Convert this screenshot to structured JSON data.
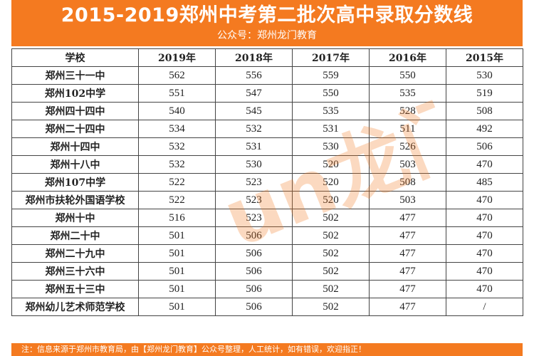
{
  "header": {
    "title": "2015-2019郑州中考第二批次高中录取分数线",
    "subtitle": "公众号：郑州龙门教育"
  },
  "table": {
    "columns": [
      "学校",
      "2019年",
      "2018年",
      "2017年",
      "2016年",
      "2015年"
    ],
    "rows": [
      [
        "郑州三十一中",
        "562",
        "556",
        "559",
        "550",
        "530"
      ],
      [
        "郑州102中学",
        "551",
        "547",
        "550",
        "535",
        "519"
      ],
      [
        "郑州四十四中",
        "540",
        "545",
        "535",
        "528",
        "508"
      ],
      [
        "郑州二十四中",
        "534",
        "532",
        "531",
        "511",
        "492"
      ],
      [
        "郑州十四中",
        "532",
        "531",
        "530",
        "526",
        "506"
      ],
      [
        "郑州十八中",
        "532",
        "530",
        "520",
        "503",
        "470"
      ],
      [
        "郑州107中学",
        "522",
        "523",
        "520",
        "508",
        "485"
      ],
      [
        "郑州市扶轮外国语学校",
        "522",
        "523",
        "520",
        "503",
        "470"
      ],
      [
        "郑州十中",
        "516",
        "523",
        "502",
        "477",
        "470"
      ],
      [
        "郑州二十中",
        "501",
        "506",
        "502",
        "477",
        "470"
      ],
      [
        "郑州二十九中",
        "501",
        "506",
        "502",
        "477",
        "470"
      ],
      [
        "郑州三十六中",
        "501",
        "506",
        "502",
        "477",
        "470"
      ],
      [
        "郑州五十三中",
        "501",
        "506",
        "502",
        "477",
        "470"
      ],
      [
        "郑州幼儿艺术师范学校",
        "501",
        "506",
        "502",
        "477",
        "/"
      ]
    ]
  },
  "footer": {
    "note": "注：信息来源于郑州市教育局，由【郑州龙门教育】公众号整理，人工统计，如有错误，欢迎指正！"
  },
  "watermark": {
    "text": "un龙门教育"
  },
  "colors": {
    "brand_orange": "#f47a20",
    "header_text": "#ffffff",
    "border": "#444444"
  }
}
